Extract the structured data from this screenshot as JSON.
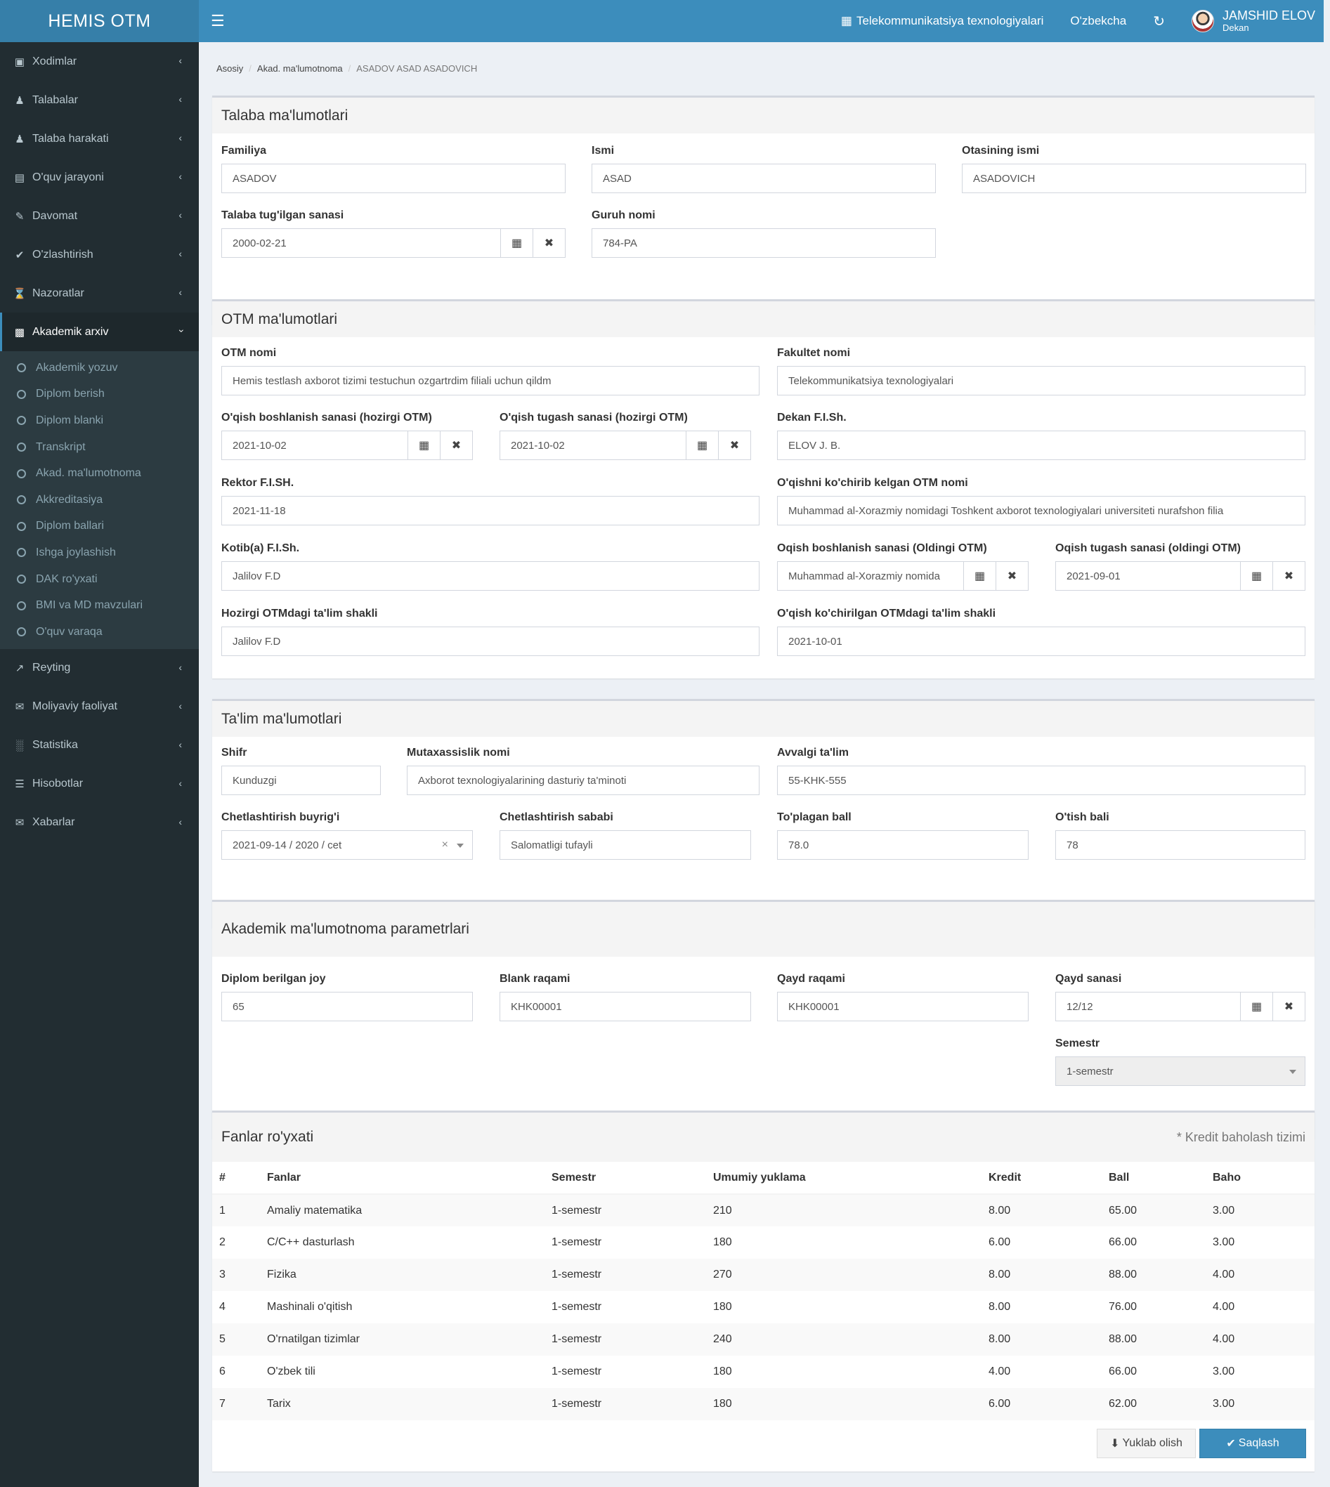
{
  "header": {
    "logo": "HEMIS OTM",
    "menu_toggle_icon": "bars-icon",
    "faculty": "Telekommunikatsiya texnologiyalari",
    "language": "O'zbekcha",
    "refresh_icon": "refresh-icon",
    "user_name": "JAMSHID ELOV",
    "user_role": "Dekan",
    "accent": "#3c8dbc"
  },
  "sidebar": {
    "items": [
      {
        "label": "Xodimlar",
        "icon": "briefcase-icon"
      },
      {
        "label": "Talabalar",
        "icon": "users-icon"
      },
      {
        "label": "Talaba harakati",
        "icon": "user-icon"
      },
      {
        "label": "O'quv jarayoni",
        "icon": "book-icon"
      },
      {
        "label": "Davomat",
        "icon": "edit-icon"
      },
      {
        "label": "O'zlashtirish",
        "icon": "check-icon"
      },
      {
        "label": "Nazoratlar",
        "icon": "hourglass-icon"
      },
      {
        "label": "Akademik arxiv",
        "icon": "archive-icon"
      }
    ],
    "sub_items": [
      "Akademik yozuv",
      "Diplom berish",
      "Diplom blanki",
      "Transkript",
      "Akad. ma'lumotnoma",
      "Akkreditasiya",
      "Diplom ballari",
      "Ishga joylashish",
      "DAK ro'yxati",
      "BMI va MD mavzulari",
      "O'quv varaqa"
    ],
    "items_after": [
      {
        "label": "Reyting",
        "icon": "chart-line-icon"
      },
      {
        "label": "Moliyaviy faoliyat",
        "icon": "envelope-icon"
      },
      {
        "label": "Statistika",
        "icon": "bar-chart-icon"
      },
      {
        "label": "Hisobotlar",
        "icon": "list-icon"
      },
      {
        "label": "Xabarlar",
        "icon": "envelope-icon"
      }
    ]
  },
  "breadcrumb": [
    "Asosiy",
    "Akad. ma'lumotnoma",
    "ASADOV ASAD ASADOVICH"
  ],
  "student": {
    "title": "Talaba ma'lumotlari",
    "familiya_label": "Familiya",
    "familiya": "ASADOV",
    "ismi_label": "Ismi",
    "ismi": "ASAD",
    "otasi_label": "Otasining ismi",
    "otasi": "ASADOVICH",
    "birth_label": "Talaba tug'ilgan sanasi",
    "birth": "2000-02-21",
    "group_label": "Guruh nomi",
    "group": "784-PA"
  },
  "otm": {
    "title": "OTM ma'lumotlari",
    "otm_label": "OTM nomi",
    "otm": "Hemis testlash axborot tizimi testuchun ozgartrdim filiali uchun qildm",
    "fakultet_label": "Fakultet nomi",
    "fakultet": "Telekommunikatsiya texnologiyalari",
    "start_label": "O'qish boshlanish sanasi (hozirgi OTM)",
    "start": "2021-10-02",
    "end_label": "O'qish tugash sanasi (hozirgi OTM)",
    "end": "2021-10-02",
    "dekan_label": "Dekan F.I.Sh.",
    "dekan": "ELOV J. B.",
    "rektor_label": "Rektor F.I.SH.",
    "rektor": "2021-11-18",
    "prev_otm_label": "O'qishni ko'chirib kelgan OTM nomi",
    "prev_otm": "Muhammad al-Xorazmiy nomidagi Toshkent axborot texnologiyalari universiteti nurafshon filia",
    "kotib_label": "Kotib(a) F.I.Sh.",
    "kotib": "Jalilov F.D",
    "prev_start_label": "Oqish boshlanish sanasi (Oldingi OTM)",
    "prev_start": "Muhammad al-Xorazmiy nomida",
    "prev_end_label": "Oqish tugash sanasi (oldingi OTM)",
    "prev_end": "2021-09-01",
    "shakl_label": "Hozirgi OTMdagi ta'lim shakli",
    "shakl": "Jalilov F.D",
    "prev_shakl_label": "O'qish ko'chirilgan OTMdagi ta'lim shakli",
    "prev_shakl": "2021-10-01"
  },
  "education": {
    "title": "Ta'lim ma'lumotlari",
    "shifr_label": "Shifr",
    "shifr": "Kunduzgi",
    "mutax_label": "Mutaxassislik nomi",
    "mutax": "Axborot texnologiyalarining dasturiy ta'minoti",
    "avval_label": "Avvalgi ta'lim",
    "avval": "55-KHK-555",
    "buyruq_label": "Chetlashtirish buyrig'i",
    "buyruq": "2021-09-14 / 2020 / cet",
    "sabab_label": "Chetlashtirish sababi",
    "sabab": "Salomatligi tufayli",
    "toplagan_label": "To'plagan ball",
    "toplagan": "78.0",
    "otish_label": "O'tish bali",
    "otish": "78"
  },
  "params": {
    "title": "Akademik ma'lumotnoma parametrlari",
    "joy_label": "Diplom berilgan joy",
    "joy": "65",
    "blank_label": "Blank raqami",
    "blank": "KHK00001",
    "qayd_label": "Qayd raqami",
    "qayd": "KHK00001",
    "qayd_sana_label": "Qayd sanasi",
    "qayd_sana": "12/12",
    "semestr_label": "Semestr",
    "semestr": "1-semestr"
  },
  "subjects": {
    "title": "Fanlar ro'yxati",
    "note": "* Kredit baholash tizimi",
    "columns": [
      "#",
      "Fanlar",
      "Semestr",
      "Umumiy yuklama",
      "Kredit",
      "Ball",
      "Baho"
    ],
    "rows": [
      [
        "1",
        "Amaliy matematika",
        "1-semestr",
        "210",
        "8.00",
        "65.00",
        "3.00"
      ],
      [
        "2",
        "C/C++ dasturlash",
        "1-semestr",
        "180",
        "6.00",
        "66.00",
        "3.00"
      ],
      [
        "3",
        "Fizika",
        "1-semestr",
        "270",
        "8.00",
        "88.00",
        "4.00"
      ],
      [
        "4",
        "Mashinali o'qitish",
        "1-semestr",
        "180",
        "8.00",
        "76.00",
        "4.00"
      ],
      [
        "5",
        "O'rnatilgan tizimlar",
        "1-semestr",
        "240",
        "8.00",
        "88.00",
        "4.00"
      ],
      [
        "6",
        "O'zbek tili",
        "1-semestr",
        "180",
        "4.00",
        "66.00",
        "3.00"
      ],
      [
        "7",
        "Tarix",
        "1-semestr",
        "180",
        "6.00",
        "62.00",
        "3.00"
      ]
    ]
  },
  "buttons": {
    "download": "Yuklab olish",
    "save": "Saqlash"
  }
}
